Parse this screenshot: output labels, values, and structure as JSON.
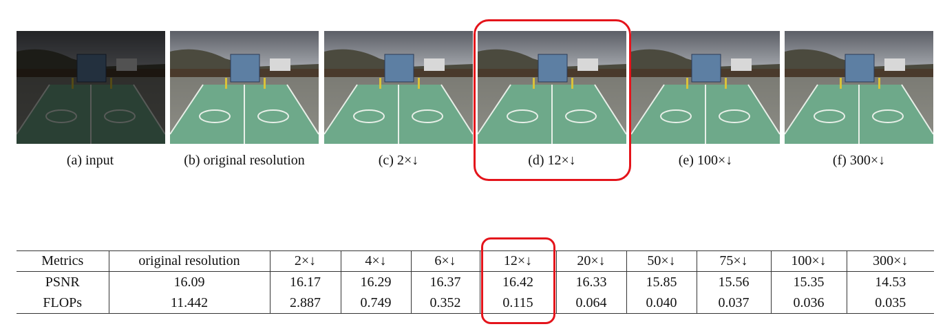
{
  "figure": {
    "captions": [
      "(a) input",
      "(b) original resolution",
      "(c) 2×↓",
      "(d) 12×↓",
      "(e) 100×↓",
      "(f) 300×↓"
    ]
  },
  "table": {
    "header": [
      "Metrics",
      "original resolution",
      "2×↓",
      "4×↓",
      "6×↓",
      "12×↓",
      "20×↓",
      "50×↓",
      "75×↓",
      "100×↓",
      "300×↓"
    ],
    "rows": [
      [
        "PSNR",
        "16.09",
        "16.17",
        "16.29",
        "16.37",
        "16.42",
        "16.33",
        "15.85",
        "15.56",
        "15.35",
        "14.53"
      ],
      [
        "FLOPs",
        "11.442",
        "2.887",
        "0.749",
        "0.352",
        "0.115",
        "0.064",
        "0.040",
        "0.037",
        "0.036",
        "0.035"
      ]
    ]
  }
}
